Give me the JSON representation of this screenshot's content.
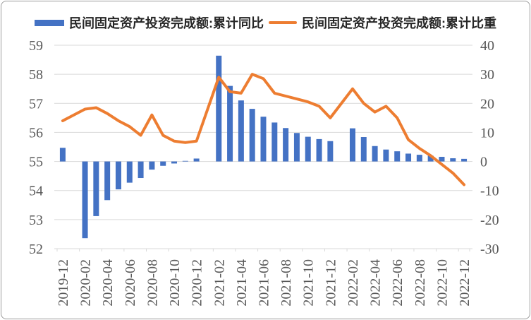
{
  "chart_data": {
    "type": "combo",
    "title": "",
    "categories": [
      "2019-12",
      "2020-02",
      "2020-03",
      "2020-04",
      "2020-05",
      "2020-06",
      "2020-07",
      "2020-08",
      "2020-09",
      "2020-10",
      "2020-11",
      "2020-12",
      "2021-02",
      "2021-03",
      "2021-04",
      "2021-05",
      "2021-06",
      "2021-07",
      "2021-08",
      "2021-09",
      "2021-10",
      "2021-11",
      "2021-12",
      "2022-02",
      "2022-03",
      "2022-04",
      "2022-05",
      "2022-06",
      "2022-07",
      "2022-08",
      "2022-09",
      "2022-10",
      "2022-11",
      "2022-12"
    ],
    "series": [
      {
        "name": "民间固定资产投资完成额:累计同比",
        "type": "bar",
        "axis": "right",
        "color": "#4472C4",
        "values": [
          4.7,
          -26.4,
          -18.8,
          -13.3,
          -9.6,
          -7.3,
          -5.7,
          -2.8,
          -1.5,
          -0.7,
          0.2,
          1.0,
          36.4,
          26.0,
          21.0,
          18.1,
          15.4,
          13.4,
          11.5,
          9.8,
          8.5,
          7.7,
          7.0,
          11.4,
          8.4,
          5.3,
          4.1,
          3.5,
          2.7,
          2.3,
          2.0,
          1.6,
          1.1,
          0.9
        ]
      },
      {
        "name": "民间固定资产投资完成额:累计比重",
        "type": "line",
        "axis": "left",
        "color": "#ED7D31",
        "values": [
          56.4,
          56.8,
          56.85,
          56.65,
          56.4,
          56.2,
          55.9,
          56.6,
          55.9,
          55.7,
          55.65,
          55.7,
          57.9,
          57.4,
          57.35,
          58.0,
          57.85,
          57.35,
          57.25,
          57.15,
          57.05,
          56.9,
          56.5,
          57.5,
          57.0,
          56.7,
          56.9,
          56.5,
          55.75,
          55.45,
          55.2,
          54.9,
          54.6,
          54.2
        ]
      }
    ],
    "left_axis": {
      "min": 52,
      "max": 59,
      "ticks": [
        "59",
        "58",
        "57",
        "56",
        "55",
        "54",
        "53",
        "52"
      ]
    },
    "right_axis": {
      "min": -30,
      "max": 40,
      "ticks": [
        "40",
        "30",
        "20",
        "10",
        "0",
        "-10",
        "-20",
        "-30"
      ]
    },
    "x_axis": {
      "tick_labels": [
        "2019-12",
        "2020-02",
        "2020-04",
        "2020-06",
        "2020-08",
        "2020-10",
        "2020-12",
        "2021-02",
        "2021-04",
        "2021-06",
        "2021-08",
        "2021-10",
        "2021-12",
        "2022-02",
        "2022-04",
        "2022-06",
        "2022-08",
        "2022-10",
        "2022-12"
      ],
      "label_rotation": -90
    },
    "legend": {
      "position": "top"
    },
    "grid": true
  },
  "colors": {
    "bar": "#4472C4",
    "line": "#ED7D31",
    "grid": "#D9D9D9",
    "axis_label": "#595959",
    "legend_text": "#262626"
  }
}
